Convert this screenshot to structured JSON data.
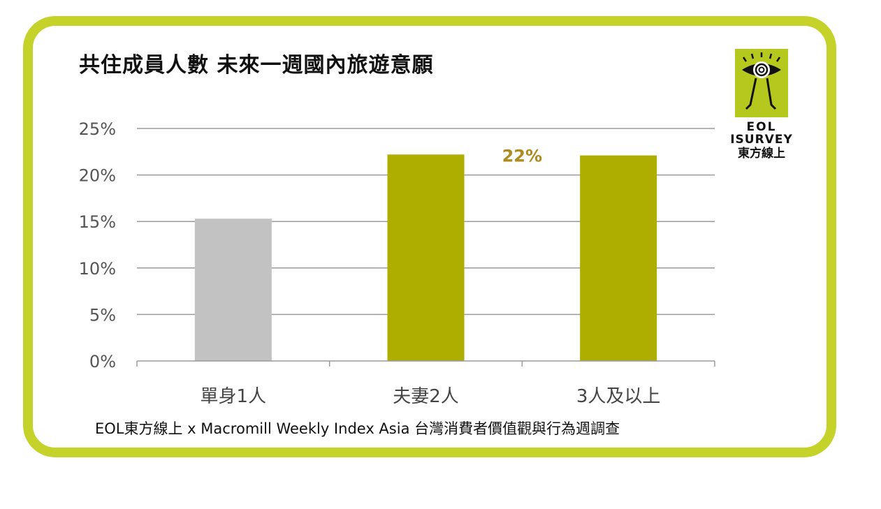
{
  "title": "共住成員人數  未來一週國內旅遊意願",
  "source": "EOL東方線上 x Macromill Weekly Index Asia 台灣消費者價值觀與行為週調查",
  "logo": {
    "line1": "EOL",
    "line2": "ISURVEY",
    "line3": "東方線上"
  },
  "colors": {
    "frame": "#c5d22a",
    "bar_single": "#c2c2c2",
    "bar_highlight": "#aeae00",
    "label": "#b08a1e"
  },
  "chart_data": {
    "type": "bar",
    "categories": [
      "單身1人",
      "夫妻2人",
      "3人及以上"
    ],
    "values": [
      15.3,
      22.2,
      22.1
    ],
    "bar_colors": [
      "#c2c2c2",
      "#aeae00",
      "#aeae00"
    ],
    "data_labels": [
      {
        "index": 1,
        "text": "22%"
      }
    ],
    "y_ticks": [
      "0%",
      "5%",
      "10%",
      "15%",
      "20%",
      "25%"
    ],
    "ylim": [
      0,
      25
    ],
    "grid": true,
    "title": "共住成員人數  未來一週國內旅遊意願",
    "xlabel": "",
    "ylabel": ""
  }
}
